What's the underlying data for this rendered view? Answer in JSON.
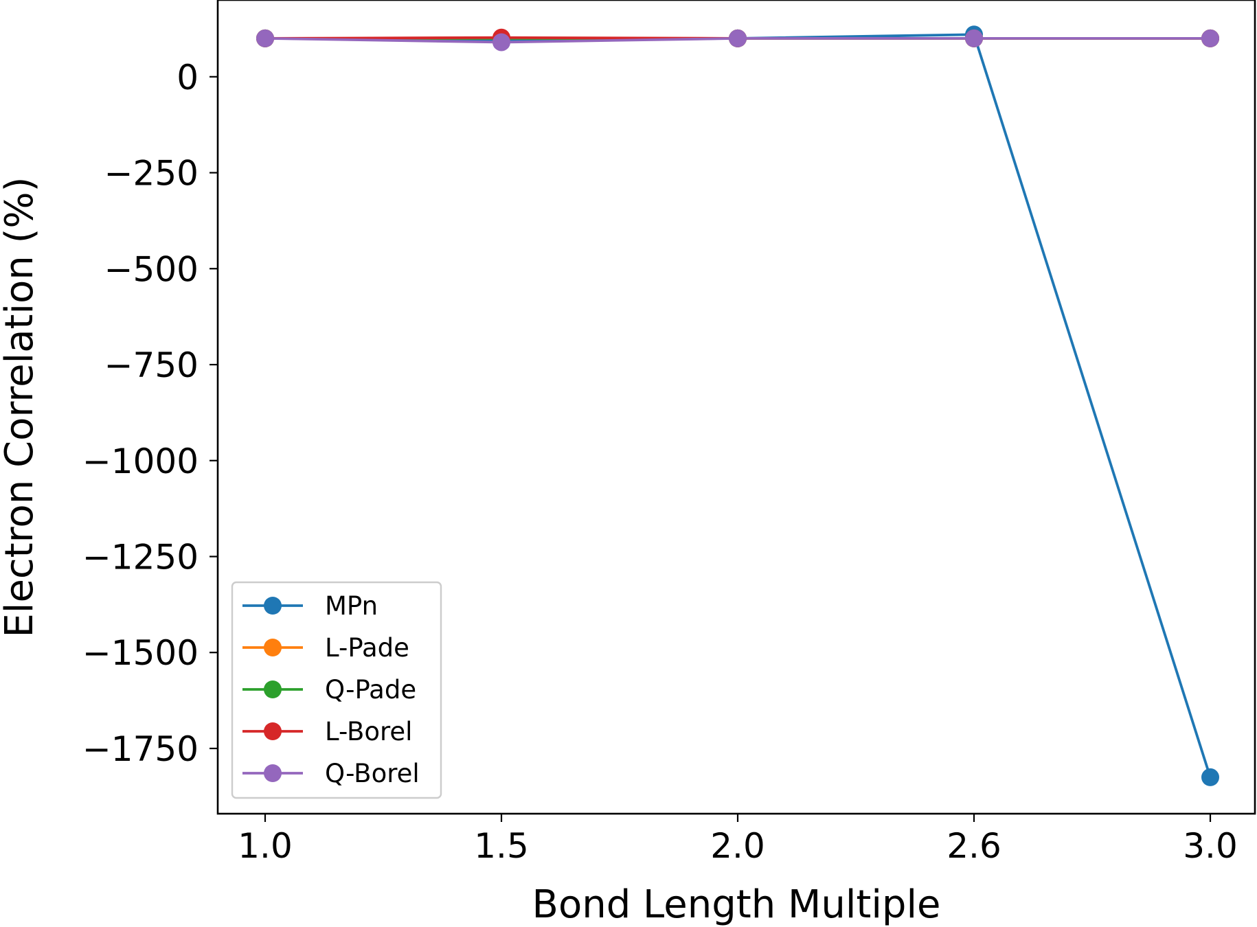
{
  "chart_data": {
    "type": "line",
    "title": "",
    "xlabel": "Bond Length Multiple",
    "ylabel": "Electron Correlation (%)",
    "categories": [
      "1.0",
      "1.5",
      "2.0",
      "2.6",
      "3.0"
    ],
    "ylim": [
      -1920,
      200
    ],
    "yticks": [
      0,
      -250,
      -500,
      -750,
      -1000,
      -1250,
      -1500,
      -1750
    ],
    "ytick_labels": [
      "0",
      "−250",
      "−500",
      "−750",
      "−1000",
      "−1250",
      "−1500",
      "−1750"
    ],
    "grid": false,
    "legend_position": "lower-left",
    "series": [
      {
        "name": "MPn",
        "color": "#1f77b4",
        "values": [
          100,
          95,
          100,
          110,
          -1825
        ]
      },
      {
        "name": "L-Pade",
        "color": "#ff7f0e",
        "values": [
          100,
          100,
          100,
          100,
          100
        ]
      },
      {
        "name": "Q-Pade",
        "color": "#2ca02c",
        "values": [
          100,
          100,
          100,
          100,
          100
        ]
      },
      {
        "name": "L-Borel",
        "color": "#d62728",
        "values": [
          100,
          102,
          100,
          100,
          100
        ]
      },
      {
        "name": "Q-Borel",
        "color": "#9467bd",
        "values": [
          100,
          90,
          100,
          100,
          100
        ]
      }
    ]
  }
}
